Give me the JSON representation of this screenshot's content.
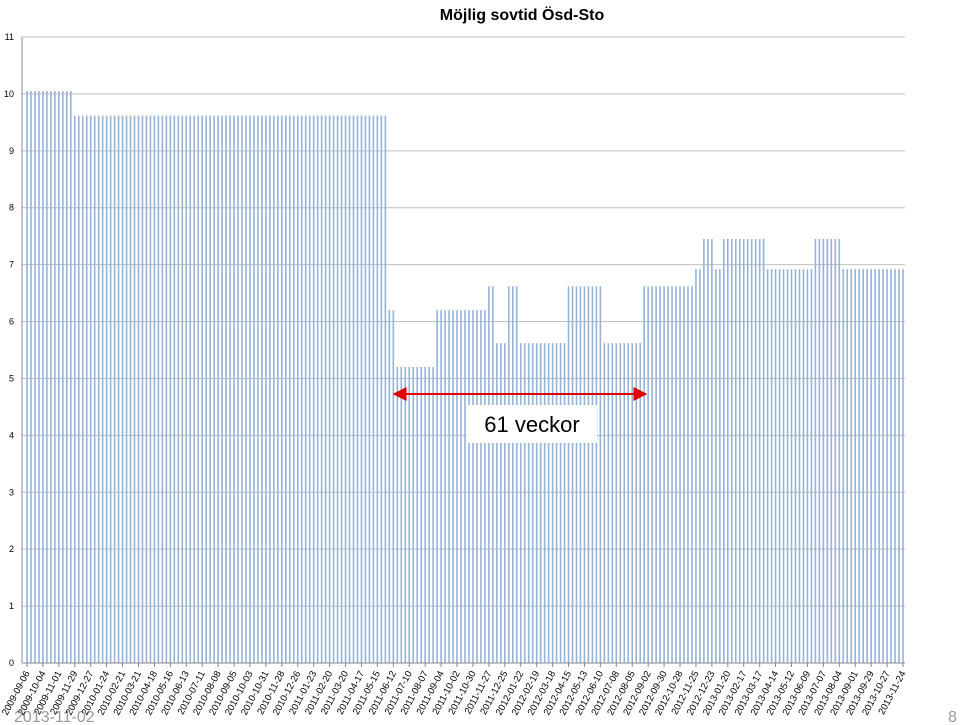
{
  "chart_data": {
    "type": "bar",
    "title": "Möjlig sovtid Ösd-Sto",
    "color": "#95b3d7",
    "ylim": [
      0,
      11
    ],
    "yticks": [
      0,
      1,
      2,
      3,
      4,
      5,
      6,
      7,
      8,
      9,
      10,
      11
    ],
    "grid": true,
    "annotation": "61 veckor",
    "footer_date": "2013-11-02",
    "page_number": "8",
    "categories": [
      "2009-09-06",
      null,
      null,
      null,
      "2009-10-04",
      null,
      null,
      null,
      "2009-11-01",
      null,
      null,
      null,
      "2009-11-29",
      null,
      null,
      null,
      "2009-12-27",
      null,
      null,
      null,
      "2010-01-24",
      null,
      null,
      null,
      "2010-02-21",
      null,
      null,
      null,
      "2010-03-21",
      null,
      null,
      null,
      "2010-04-18",
      null,
      null,
      null,
      "2010-05-16",
      null,
      null,
      null,
      "2010-06-13",
      null,
      null,
      null,
      "2010-07-11",
      null,
      null,
      null,
      "2010-08-08",
      null,
      null,
      null,
      "2010-09-05",
      null,
      null,
      null,
      "2010-10-03",
      null,
      null,
      null,
      "2010-10-31",
      null,
      null,
      null,
      "2010-11-28",
      null,
      null,
      null,
      "2010-12-26",
      null,
      null,
      null,
      "2011-01-23",
      null,
      null,
      null,
      "2011-02-20",
      null,
      null,
      null,
      "2011-03-20",
      null,
      null,
      null,
      "2011-04-17",
      null,
      null,
      null,
      "2011-05-15",
      null,
      null,
      null,
      "2011-06-12",
      null,
      null,
      null,
      "2011-07-10",
      null,
      null,
      null,
      "2011-08-07",
      null,
      null,
      null,
      "2011-09-04",
      null,
      null,
      null,
      "2011-10-02",
      null,
      null,
      null,
      "2011-10-30",
      null,
      null,
      null,
      "2011-11-27",
      null,
      null,
      null,
      "2011-12-25",
      null,
      null,
      null,
      "2012-01-22",
      null,
      null,
      null,
      "2012-02-19",
      null,
      null,
      null,
      "2012-03-18",
      null,
      null,
      null,
      "2012-04-15",
      null,
      null,
      null,
      "2012-05-13",
      null,
      null,
      null,
      "2012-06-10",
      null,
      null,
      null,
      "2012-07-08",
      null,
      null,
      null,
      "2012-08-05",
      null,
      null,
      null,
      "2012-09-02",
      null,
      null,
      null,
      "2012-09-30",
      null,
      null,
      null,
      "2012-10-28",
      null,
      null,
      null,
      "2012-11-25",
      null,
      null,
      null,
      "2012-12-23",
      null,
      null,
      null,
      "2013-01-20",
      null,
      null,
      null,
      "2013-02-17",
      null,
      null,
      null,
      "2013-03-17",
      null,
      null,
      null,
      "2013-04-14",
      null,
      null,
      null,
      "2013-05-12",
      null,
      null,
      null,
      "2013-06-09",
      null,
      null,
      null,
      "2013-07-07",
      null,
      null,
      null,
      "2013-08-04",
      null,
      null,
      null,
      "2013-09-01",
      null,
      null,
      null,
      "2013-09-29",
      null,
      null,
      null,
      "2013-10-27",
      null,
      null,
      null,
      "2013-11-24"
    ],
    "values": [
      10.05,
      10.05,
      10.05,
      10.05,
      10.05,
      10.05,
      10.05,
      10.05,
      10.05,
      10.05,
      10.05,
      10.05,
      9.62,
      9.62,
      9.62,
      9.62,
      9.62,
      9.62,
      9.62,
      9.62,
      9.62,
      9.62,
      9.62,
      9.62,
      9.62,
      9.62,
      9.62,
      9.62,
      9.62,
      9.62,
      9.62,
      9.62,
      9.62,
      9.62,
      9.62,
      9.62,
      9.62,
      9.62,
      9.62,
      9.62,
      9.62,
      9.62,
      9.62,
      9.62,
      9.62,
      9.62,
      9.62,
      9.62,
      9.62,
      9.62,
      9.62,
      9.62,
      9.62,
      9.62,
      9.62,
      9.62,
      9.62,
      9.62,
      9.62,
      9.62,
      9.62,
      9.62,
      9.62,
      9.62,
      9.62,
      9.62,
      9.62,
      9.62,
      9.62,
      9.62,
      9.62,
      9.62,
      9.62,
      9.62,
      9.62,
      9.62,
      9.62,
      9.62,
      9.62,
      9.62,
      9.62,
      9.62,
      9.62,
      9.62,
      9.62,
      9.62,
      9.62,
      9.62,
      9.62,
      9.62,
      9.62,
      6.2,
      6.2,
      5.2,
      5.2,
      5.2,
      5.2,
      5.2,
      5.2,
      5.2,
      5.2,
      5.2,
      5.2,
      6.2,
      6.2,
      6.2,
      6.2,
      6.2,
      6.2,
      6.2,
      6.2,
      6.2,
      6.2,
      6.2,
      6.2,
      6.2,
      6.62,
      6.62,
      5.62,
      5.62,
      5.62,
      6.62,
      6.62,
      6.62,
      5.62,
      5.62,
      5.62,
      5.62,
      5.62,
      5.62,
      5.62,
      5.62,
      5.62,
      5.62,
      5.62,
      5.62,
      6.62,
      6.62,
      6.62,
      6.62,
      6.62,
      6.62,
      6.62,
      6.62,
      6.62,
      5.62,
      5.62,
      5.62,
      5.62,
      5.62,
      5.62,
      5.62,
      5.62,
      5.62,
      5.62,
      6.62,
      6.62,
      6.62,
      6.62,
      6.62,
      6.62,
      6.62,
      6.62,
      6.62,
      6.62,
      6.62,
      6.62,
      6.62,
      6.92,
      6.92,
      7.45,
      7.45,
      7.45,
      6.92,
      6.92,
      7.45,
      7.45,
      7.45,
      7.45,
      7.45,
      7.45,
      7.45,
      7.45,
      7.45,
      7.45,
      7.45,
      6.92,
      6.92,
      6.92,
      6.92,
      6.92,
      6.92,
      6.92,
      6.92,
      6.92,
      6.92,
      6.92,
      6.92,
      7.45,
      7.45,
      7.45,
      7.45,
      7.45,
      7.45,
      7.45,
      6.92,
      6.92,
      6.92,
      6.92,
      6.92,
      6.92,
      6.92,
      6.92,
      6.92,
      6.92,
      6.92,
      6.92,
      6.92,
      6.92,
      6.92,
      6.92
    ]
  }
}
